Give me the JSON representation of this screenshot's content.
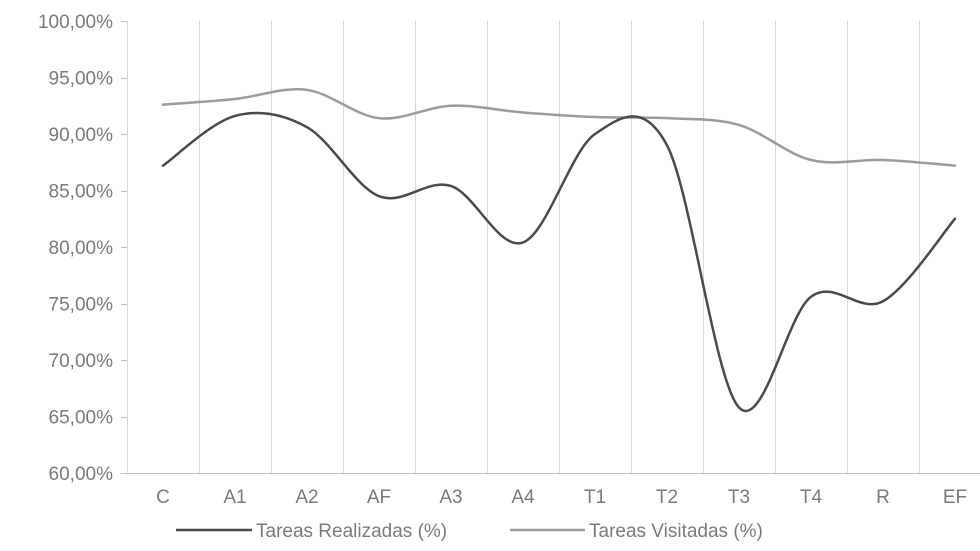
{
  "chart_data": {
    "type": "line",
    "title": "",
    "xlabel": "",
    "ylabel": "",
    "categories": [
      "C",
      "A1",
      "A2",
      "AF",
      "A3",
      "A4",
      "T1",
      "T2",
      "T3",
      "T4",
      "R",
      "EF"
    ],
    "ylim": [
      60,
      100
    ],
    "yticks": [
      60,
      65,
      70,
      75,
      80,
      85,
      90,
      95,
      100
    ],
    "ytick_labels": [
      "60,00%",
      "65,00%",
      "70,00%",
      "75,00%",
      "80,00%",
      "85,00%",
      "90,00%",
      "95,00%",
      "100,00%"
    ],
    "grid": "vertical-category",
    "legend_position": "bottom",
    "series": [
      {
        "name": "Tareas Realizadas (%)",
        "color": "#4a4a4a",
        "values": [
          87.2,
          91.6,
          90.6,
          84.5,
          85.4,
          80.4,
          90.0,
          89.0,
          65.8,
          75.6,
          75.2,
          82.5
        ]
      },
      {
        "name": "Tareas Visitadas (%)",
        "color": "#9b9b9b",
        "values": [
          92.6,
          93.1,
          93.9,
          91.4,
          92.5,
          91.9,
          91.5,
          91.4,
          90.8,
          87.7,
          87.7,
          87.2
        ]
      }
    ],
    "colors": {
      "grid": "#d9d9d9",
      "axis": "#bfbfbf",
      "tick_label": "#7a7a7a"
    }
  }
}
